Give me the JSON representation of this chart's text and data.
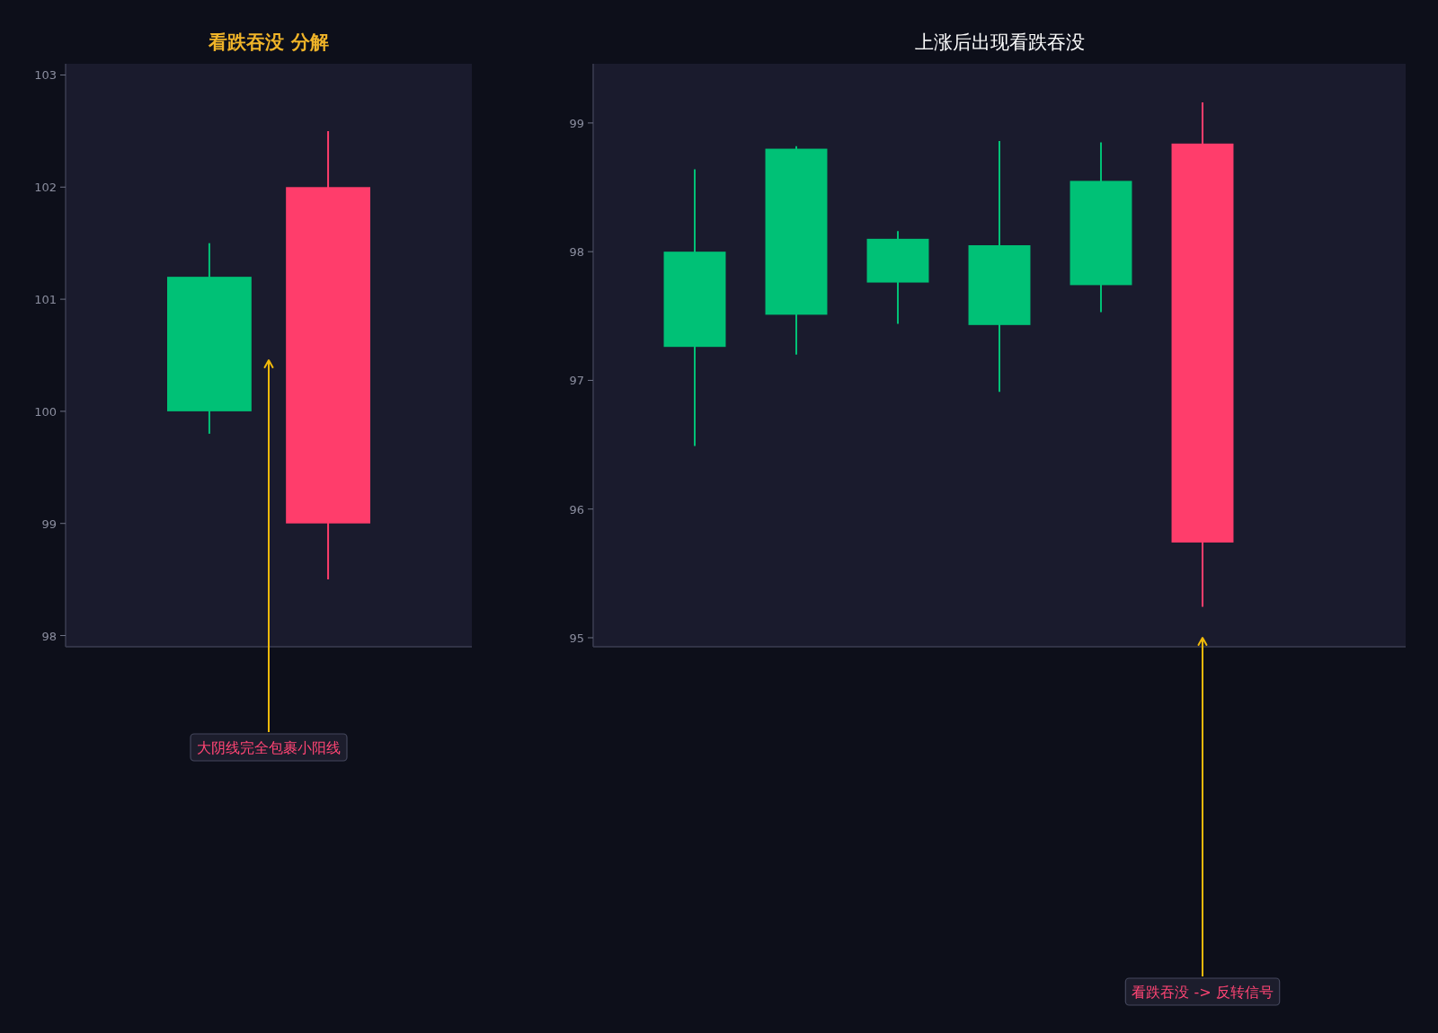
{
  "chart_data": [
    {
      "type": "candlestick",
      "title": "看跌吞没 分解",
      "categories": [
        null,
        null
      ],
      "ohlc": [
        [
          100,
          101.5,
          99.8,
          101.2
        ],
        [
          102,
          102.5,
          98.5,
          99
        ]
      ],
      "colors": [
        "#00c176",
        "#ff3d6b"
      ],
      "ylim": [
        97.9,
        103.1
      ],
      "yticks": [
        98,
        99,
        100,
        101,
        102,
        103
      ],
      "tick_labels": "y",
      "annotations": [
        "大阴线完全包裹小阳线"
      ]
    },
    {
      "type": "candlestick",
      "title": "上涨后出现看跌吞没",
      "categories": [
        null,
        null,
        null,
        null,
        null,
        null
      ],
      "ohlc": [
        [
          97.26,
          98.64,
          96.49,
          98.0
        ],
        [
          97.51,
          98.82,
          97.2,
          98.8
        ],
        [
          97.76,
          98.16,
          97.44,
          98.1
        ],
        [
          97.43,
          98.86,
          96.91,
          98.05
        ],
        [
          97.74,
          98.85,
          97.53,
          98.55
        ],
        [
          98.84,
          99.16,
          95.24,
          95.74
        ]
      ],
      "colors": [
        "#00c176",
        "#00c176",
        "#00c176",
        "#00c176",
        "#00c176",
        "#ff3d6b"
      ],
      "ylim": [
        94.93,
        99.46
      ],
      "yticks": [
        95,
        96,
        97,
        98,
        99
      ],
      "tick_labels": "y",
      "annotations": [
        "看跌吞没 -> 反转信号"
      ]
    }
  ]
}
